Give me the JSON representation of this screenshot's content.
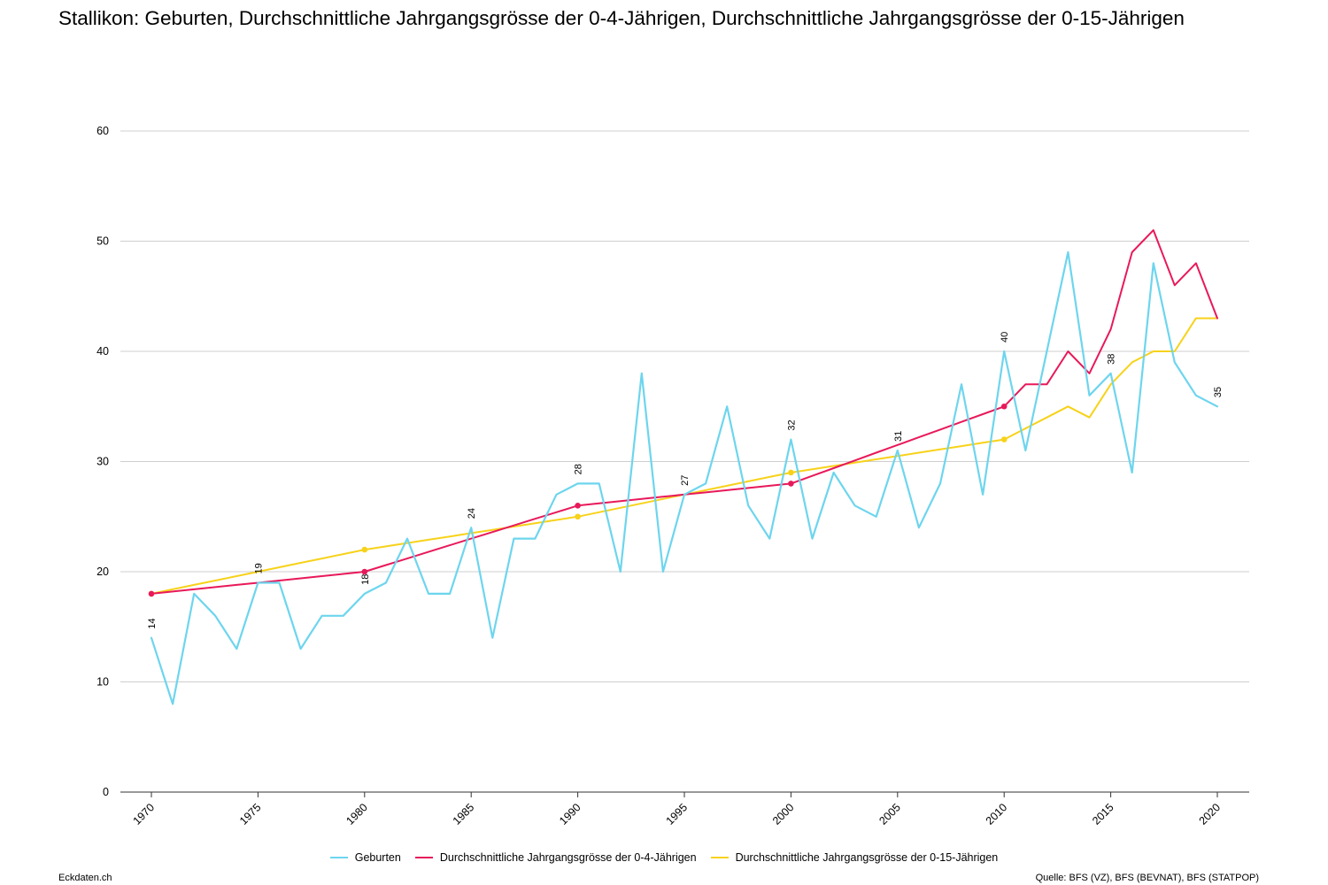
{
  "title": "Stallikon: Geburten, Durchschnittliche Jahrgangsgrösse der 0-4-Jährigen, Durchschnittliche Jahrgangsgrösse der 0-15-Jährigen",
  "footer": {
    "left": "Eckdaten.ch",
    "right": "Quelle: BFS (VZ), BFS (BEVNAT), BFS (STATPOP)"
  },
  "chart_data": {
    "type": "line",
    "grid": true,
    "legend_position": "bottom-center",
    "xlim": [
      1970,
      2020
    ],
    "ylim": [
      0,
      60
    ],
    "x_ticks": [
      1970,
      1975,
      1980,
      1985,
      1990,
      1995,
      2000,
      2005,
      2010,
      2015,
      2020
    ],
    "y_ticks": [
      0,
      10,
      20,
      30,
      40,
      50,
      60
    ],
    "series": [
      {
        "name": "Geburten",
        "color": "#6dd5ee",
        "x": [
          1970,
          1971,
          1972,
          1973,
          1974,
          1975,
          1976,
          1977,
          1978,
          1979,
          1980,
          1981,
          1982,
          1983,
          1984,
          1985,
          1986,
          1987,
          1988,
          1989,
          1990,
          1991,
          1992,
          1993,
          1994,
          1995,
          1996,
          1997,
          1998,
          1999,
          2000,
          2001,
          2002,
          2003,
          2004,
          2005,
          2006,
          2007,
          2008,
          2009,
          2010,
          2011,
          2012,
          2013,
          2014,
          2015,
          2016,
          2017,
          2018,
          2019,
          2020
        ],
        "values": [
          14,
          8,
          18,
          16,
          13,
          19,
          19,
          13,
          16,
          16,
          18,
          19,
          23,
          18,
          18,
          24,
          14,
          23,
          23,
          27,
          28,
          28,
          20,
          38,
          20,
          27,
          28,
          35,
          26,
          23,
          32,
          23,
          29,
          26,
          25,
          31,
          24,
          28,
          37,
          27,
          40,
          31,
          40,
          49,
          36,
          38,
          29,
          48,
          39,
          36,
          35
        ],
        "data_labels": [
          {
            "x": 1970,
            "text": "14"
          },
          {
            "x": 1975,
            "text": "19"
          },
          {
            "x": 1980,
            "text": "18"
          },
          {
            "x": 1985,
            "text": "24"
          },
          {
            "x": 1990,
            "text": "28"
          },
          {
            "x": 1995,
            "text": "27"
          },
          {
            "x": 2000,
            "text": "32"
          },
          {
            "x": 2005,
            "text": "31"
          },
          {
            "x": 2010,
            "text": "40"
          },
          {
            "x": 2015,
            "text": "38"
          },
          {
            "x": 2020,
            "text": "35"
          }
        ]
      },
      {
        "name": "Durchschnittliche Jahrgangsgrösse der 0-4-Jährigen",
        "color": "#e8195a",
        "x": [
          1970,
          1971,
          1972,
          1973,
          1974,
          1975,
          1976,
          1977,
          1978,
          1979,
          1980,
          1981,
          1982,
          1983,
          1984,
          1985,
          1986,
          1987,
          1988,
          1989,
          1990,
          1991,
          1992,
          1993,
          1994,
          1995,
          1996,
          1997,
          1998,
          1999,
          2000,
          2001,
          2002,
          2003,
          2004,
          2005,
          2006,
          2007,
          2008,
          2009,
          2010,
          2011,
          2012,
          2013,
          2014,
          2015,
          2016,
          2017,
          2018,
          2019,
          2020
        ],
        "values": [
          18,
          18.2,
          18.4,
          18.6,
          18.8,
          19,
          19.2,
          19.4,
          19.6,
          19.8,
          20,
          20.6,
          21.2,
          21.8,
          22.4,
          23,
          23.6,
          24.2,
          24.8,
          25.4,
          26,
          26.2,
          26.4,
          26.6,
          26.8,
          27,
          27.2,
          27.4,
          27.6,
          27.8,
          28,
          28.7,
          29.4,
          30.1,
          30.8,
          31.5,
          32.2,
          32.9,
          33.6,
          34.3,
          35,
          37,
          37,
          40,
          38,
          42,
          49,
          51,
          46,
          48,
          43
        ],
        "markers": [
          1970,
          1980,
          1990,
          2000,
          2010
        ]
      },
      {
        "name": "Durchschnittliche Jahrgangsgrösse der 0-15-Jährigen",
        "color": "#f7d21a",
        "x": [
          1970,
          1971,
          1972,
          1973,
          1974,
          1975,
          1976,
          1977,
          1978,
          1979,
          1980,
          1981,
          1982,
          1983,
          1984,
          1985,
          1986,
          1987,
          1988,
          1989,
          1990,
          1991,
          1992,
          1993,
          1994,
          1995,
          1996,
          1997,
          1998,
          1999,
          2000,
          2001,
          2002,
          2003,
          2004,
          2005,
          2006,
          2007,
          2008,
          2009,
          2010,
          2011,
          2012,
          2013,
          2014,
          2015,
          2016,
          2017,
          2018,
          2019,
          2020
        ],
        "values": [
          18,
          18.4,
          18.8,
          19.2,
          19.6,
          20,
          20.4,
          20.8,
          21.2,
          21.6,
          22,
          22.3,
          22.6,
          22.9,
          23.2,
          23.5,
          23.8,
          24.1,
          24.4,
          24.7,
          25,
          25.4,
          25.8,
          26.2,
          26.6,
          27,
          27.4,
          27.8,
          28.2,
          28.6,
          29,
          29.3,
          29.6,
          29.9,
          30.2,
          30.5,
          30.8,
          31.1,
          31.4,
          31.7,
          32,
          33,
          34,
          35,
          34,
          37,
          39,
          40,
          40,
          43,
          43
        ],
        "markers": [
          1970,
          1980,
          1990,
          2000,
          2010
        ]
      }
    ]
  }
}
